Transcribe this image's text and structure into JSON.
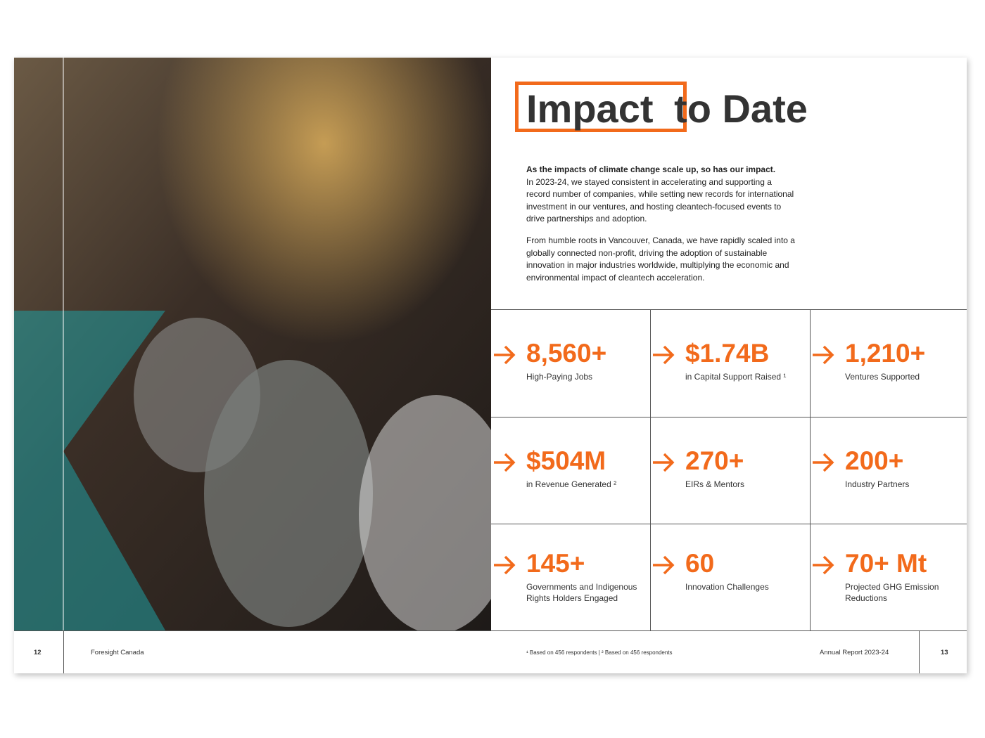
{
  "header": {
    "title_highlight": "Impact",
    "title_rest": "to Date"
  },
  "intro": {
    "lead": "As the impacts of climate change scale up, so has our impact.",
    "paragraphs": [
      "In 2023-24, we stayed consistent in accelerating and supporting a record number of companies, while setting new records for international investment in our ventures, and hosting cleantech-focused events to drive partnerships and adoption.",
      "From humble roots in Vancouver, Canada, we have rapidly scaled into a globally connected non-profit, driving the adoption of sustainable innovation in major industries worldwide, multiplying the economic and environmental impact of cleantech acceleration."
    ]
  },
  "stats": [
    {
      "value": "8,560+",
      "label": "High-Paying Jobs"
    },
    {
      "value": "$1.74B",
      "label": "in Capital Support Raised ¹"
    },
    {
      "value": "1,210+",
      "label": "Ventures Supported"
    },
    {
      "value": "$504M",
      "label": "in Revenue Generated ²"
    },
    {
      "value": "270+",
      "label": "EIRs & Mentors"
    },
    {
      "value": "200+",
      "label": "Industry Partners"
    },
    {
      "value": "145+",
      "label": "Governments and Indigenous Rights Holders Engaged"
    },
    {
      "value": "60",
      "label": "Innovation Challenges"
    },
    {
      "value": "70+ Mt",
      "label": "Projected GHG Emission Reductions"
    }
  ],
  "footer": {
    "left_page": "12",
    "left_text": "Foresight Canada",
    "footnote": "¹ Based on 456 respondents | ² Based on 456 respondents",
    "right_text": "Annual Report 2023-24",
    "right_page": "13"
  }
}
